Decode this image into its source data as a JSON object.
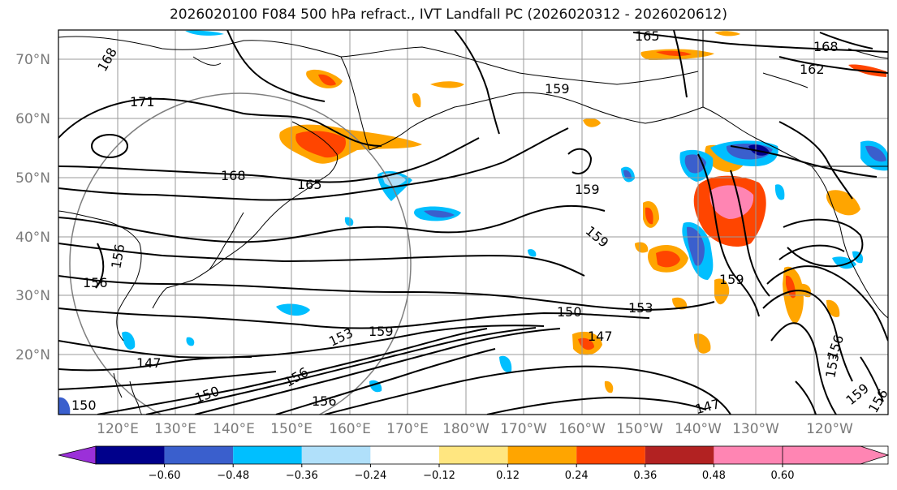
{
  "title": "2026020100 F084 500 hPa refract., IVT Landfall PC (2026020312 - 2026020612)",
  "lat_labels": [
    "70°N",
    "60°N",
    "50°N",
    "40°N",
    "30°N",
    "20°N"
  ],
  "lon_labels": [
    "120°E",
    "130°E",
    "140°E",
    "150°E",
    "160°E",
    "170°E",
    "180°W",
    "170°W",
    "160°W",
    "150°W",
    "140°W",
    "130°W",
    "120°W"
  ],
  "contour_labels": [
    "168",
    "171",
    "168",
    "165",
    "159",
    "159",
    "159",
    "165",
    "168",
    "162",
    "156",
    "156",
    "147",
    "150",
    "153",
    "159",
    "156",
    "156",
    "150",
    "153",
    "147",
    "150",
    "159",
    "153",
    "156",
    "159",
    "156",
    "147"
  ],
  "colorbar": {
    "colors": [
      "#9b30d9",
      "#00008b",
      "#3a5fcd",
      "#00bfff",
      "#b0e0fa",
      "#ffffff",
      "#ffe680",
      "#ffa500",
      "#ff4500",
      "#b22222",
      "#ff85b3"
    ],
    "ticks": [
      "−0.60",
      "−0.48",
      "−0.36",
      "−0.24",
      "−0.12",
      "0.12",
      "0.24",
      "0.36",
      "0.48",
      "0.60"
    ]
  }
}
